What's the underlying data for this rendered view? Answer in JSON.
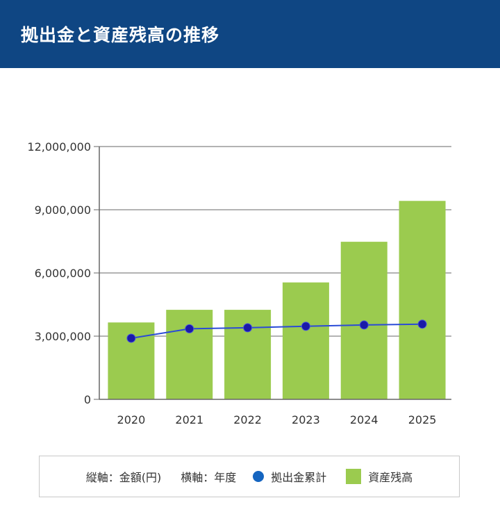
{
  "header": {
    "title": "拠出金と資産残高の推移"
  },
  "legend": {
    "vertical_axis": "縦軸：金額(円)",
    "horizontal_axis": "横軸：年度",
    "line_label": "拠出金累計",
    "bar_label": "資産残高"
  },
  "colors": {
    "header_bg": "#0f4683",
    "bar": "#9bcb4f",
    "line": "#2a4bd7",
    "marker": "#1a1aa8",
    "legend_dot": "#1565c0"
  },
  "chart_data": {
    "type": "bar",
    "categories": [
      "2020",
      "2021",
      "2022",
      "2023",
      "2024",
      "2025"
    ],
    "series": [
      {
        "name": "資産残高",
        "type": "bar",
        "values": [
          3650000,
          4250000,
          4250000,
          5550000,
          7480000,
          9420000
        ]
      },
      {
        "name": "拠出金累計",
        "type": "line",
        "values": [
          2900000,
          3350000,
          3400000,
          3470000,
          3530000,
          3570000
        ]
      }
    ],
    "ylim": [
      0,
      12000000
    ],
    "yticks": [
      "0",
      "3,000,000",
      "6,000,000",
      "9,000,000",
      "12,000,000"
    ],
    "ytick_values": [
      0,
      3000000,
      6000000,
      9000000,
      12000000
    ],
    "grid": true
  }
}
